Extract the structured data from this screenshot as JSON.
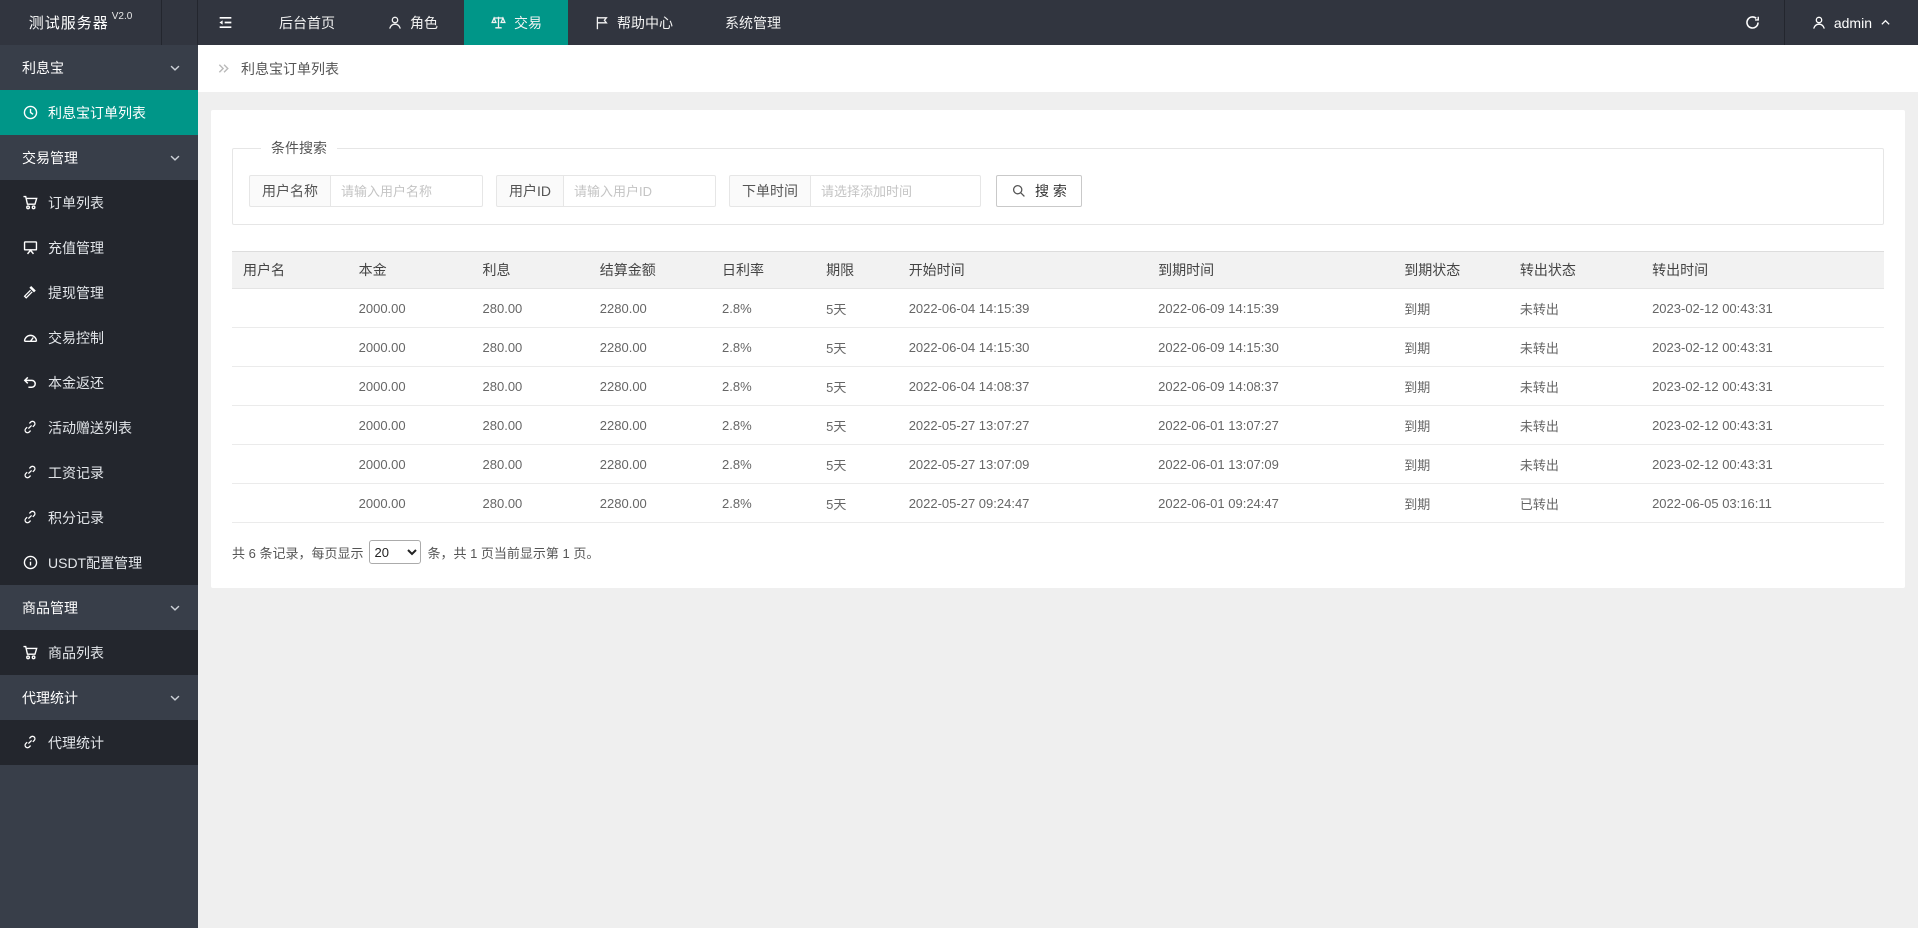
{
  "header": {
    "logo": {
      "title": "测试服务器",
      "version": "V2.0"
    },
    "nav_items": [
      {
        "label": "后台首页",
        "icon": null,
        "active": false
      },
      {
        "label": "角色",
        "icon": "user",
        "active": false
      },
      {
        "label": "交易",
        "icon": "scales",
        "active": true
      },
      {
        "label": "帮助中心",
        "icon": "flag",
        "active": false
      },
      {
        "label": "系统管理",
        "icon": null,
        "active": false
      }
    ],
    "username": "admin"
  },
  "sidebar": {
    "items": [
      {
        "type": "group",
        "label": "利息宝"
      },
      {
        "type": "item",
        "label": "利息宝订单列表",
        "icon": "clock",
        "active": true
      },
      {
        "type": "group",
        "label": "交易管理"
      },
      {
        "type": "item",
        "label": "订单列表",
        "icon": "cart",
        "active": false
      },
      {
        "type": "item",
        "label": "充值管理",
        "icon": "board",
        "active": false
      },
      {
        "type": "item",
        "label": "提现管理",
        "icon": "hammer",
        "active": false
      },
      {
        "type": "item",
        "label": "交易控制",
        "icon": "gauge",
        "active": false
      },
      {
        "type": "item",
        "label": "本金返还",
        "icon": "undo",
        "active": false
      },
      {
        "type": "item",
        "label": "活动赠送列表",
        "icon": "link",
        "active": false
      },
      {
        "type": "item",
        "label": "工资记录",
        "icon": "link",
        "active": false
      },
      {
        "type": "item",
        "label": "积分记录",
        "icon": "link",
        "active": false
      },
      {
        "type": "item",
        "label": "USDT配置管理",
        "icon": "info",
        "active": false
      },
      {
        "type": "group",
        "label": "商品管理"
      },
      {
        "type": "item",
        "label": "商品列表",
        "icon": "cart",
        "active": false
      },
      {
        "type": "group",
        "label": "代理统计"
      },
      {
        "type": "item",
        "label": "代理统计",
        "icon": "link",
        "active": false
      }
    ]
  },
  "breadcrumb": {
    "title": "利息宝订单列表"
  },
  "search": {
    "legend": "条件搜索",
    "fields": [
      {
        "label": "用户名称",
        "placeholder": "请输入用户名称",
        "wide": false
      },
      {
        "label": "用户ID",
        "placeholder": "请输入用户ID",
        "wide": false
      },
      {
        "label": "下单时间",
        "placeholder": "请选择添加时间",
        "wide": true
      }
    ],
    "button_label": "搜 索"
  },
  "table": {
    "headers": [
      "用户名",
      "本金",
      "利息",
      "结算金额",
      "日利率",
      "期限",
      "开始时间",
      "到期时间",
      "到期状态",
      "转出状态",
      "转出时间"
    ],
    "rows": [
      [
        "",
        "2000.00",
        "280.00",
        "2280.00",
        "2.8%",
        "5天",
        "2022-06-04 14:15:39",
        "2022-06-09 14:15:39",
        "到期",
        "未转出",
        "2023-02-12 00:43:31"
      ],
      [
        "",
        "2000.00",
        "280.00",
        "2280.00",
        "2.8%",
        "5天",
        "2022-06-04 14:15:30",
        "2022-06-09 14:15:30",
        "到期",
        "未转出",
        "2023-02-12 00:43:31"
      ],
      [
        "",
        "2000.00",
        "280.00",
        "2280.00",
        "2.8%",
        "5天",
        "2022-06-04 14:08:37",
        "2022-06-09 14:08:37",
        "到期",
        "未转出",
        "2023-02-12 00:43:31"
      ],
      [
        "",
        "2000.00",
        "280.00",
        "2280.00",
        "2.8%",
        "5天",
        "2022-05-27 13:07:27",
        "2022-06-01 13:07:27",
        "到期",
        "未转出",
        "2023-02-12 00:43:31"
      ],
      [
        "",
        "2000.00",
        "280.00",
        "2280.00",
        "2.8%",
        "5天",
        "2022-05-27 13:07:09",
        "2022-06-01 13:07:09",
        "到期",
        "未转出",
        "2023-02-12 00:43:31"
      ],
      [
        "",
        "2000.00",
        "280.00",
        "2280.00",
        "2.8%",
        "5天",
        "2022-05-27 09:24:47",
        "2022-06-01 09:24:47",
        "到期",
        "已转出",
        "2022-06-05 03:16:11"
      ]
    ]
  },
  "pagination": {
    "prefix": "共 6 条记录，每页显示",
    "page_size": "20",
    "suffix": "条，共 1 页当前显示第 1 页。"
  },
  "colors": {
    "accent": "#009688",
    "topbar_bg": "#31353f",
    "sidebar_item_bg": "#23262d",
    "sidebar_group_bg": "#383e49",
    "content_bg": "#efefef",
    "table_header_bg": "#f2f2f2"
  },
  "icons": {
    "hamburger-icon": "collapse-menu lines",
    "user-icon": "person outline",
    "scales-icon": "balance scales",
    "flag-icon": "flag on pole",
    "refresh-icon": "circular arrow",
    "caret-up-icon": "chevron up",
    "chevron-down-icon": "chevron down",
    "double-angle-icon": "breadcrumb double chevron right",
    "clock-icon": "clock in circle",
    "cart-icon": "shopping cart",
    "board-icon": "display board",
    "hammer-icon": "gavel",
    "gauge-icon": "speedometer",
    "undo-icon": "return arrow",
    "link-icon": "chain link",
    "info-icon": "info circle",
    "search-icon": "magnifier"
  }
}
